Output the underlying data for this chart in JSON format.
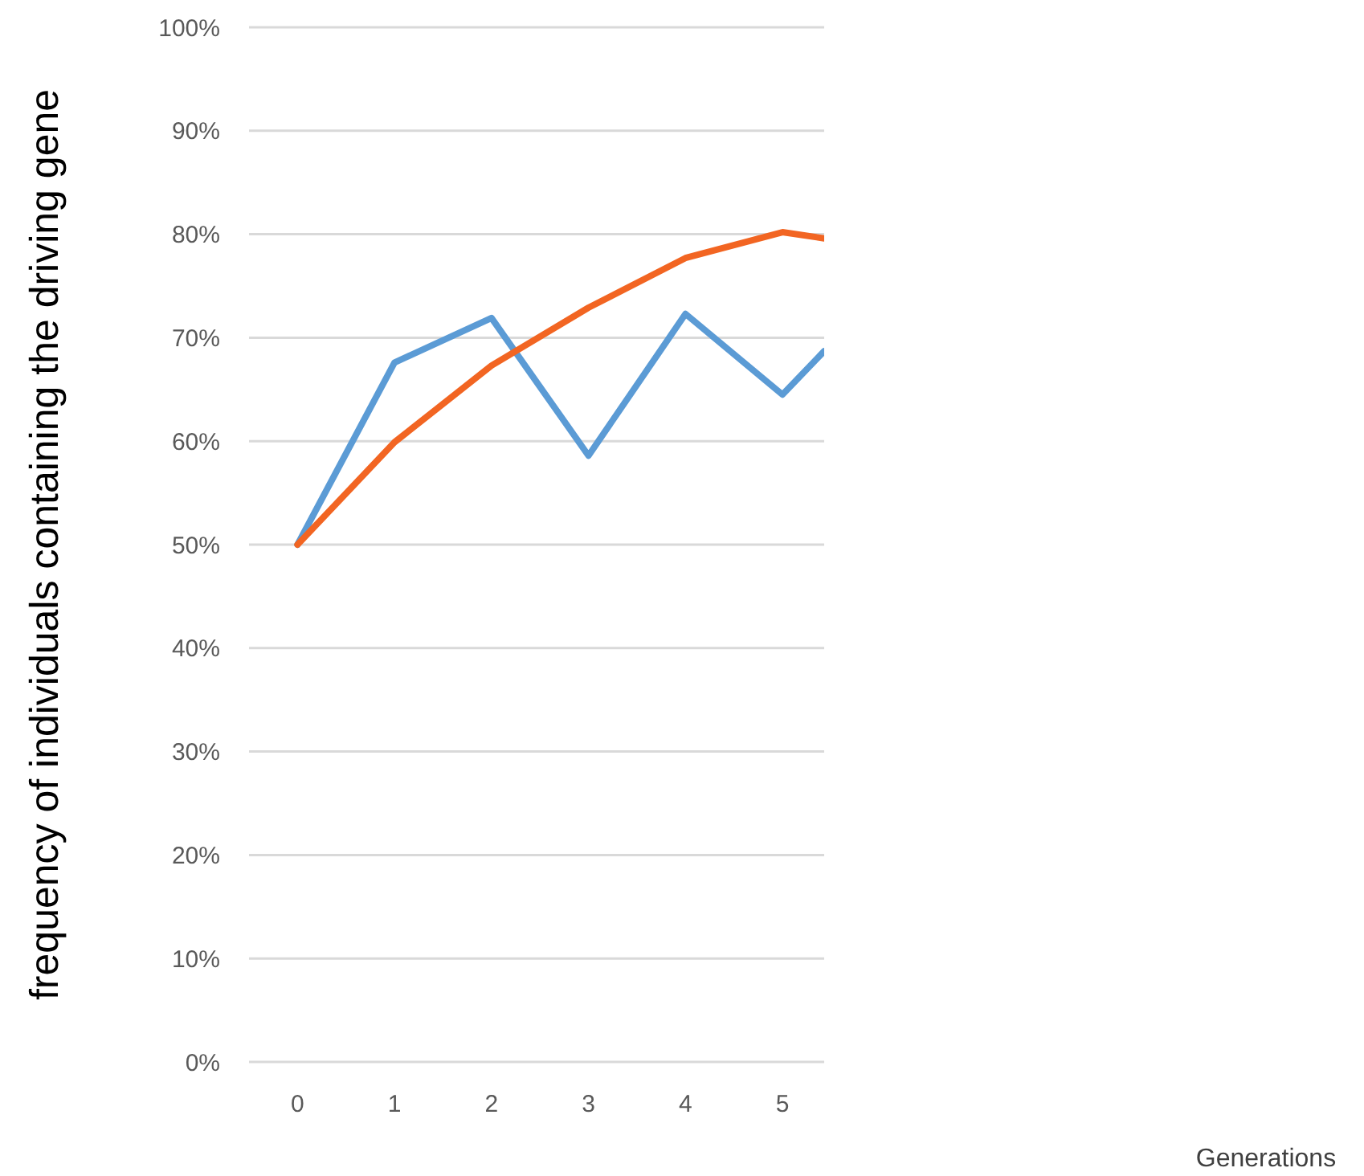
{
  "chart_data": {
    "type": "line",
    "annotations": [
      "Generations"
    ],
    "ylabel": "frequency of individuals containing the driving gene",
    "x": [
      0,
      1,
      2,
      3,
      4,
      5,
      5.43
    ],
    "series": [
      {
        "color": "#5b9bd5",
        "values": [
          50,
          67.6,
          71.9,
          58.6,
          72.3,
          64.5,
          68.7
        ]
      },
      {
        "color": "#f26522",
        "values": [
          50,
          59.9,
          67.3,
          72.9,
          77.7,
          80.2,
          79.6
        ]
      }
    ],
    "xlim": [
      -0.5,
      5.43
    ],
    "xticks": [
      0,
      1,
      2,
      3,
      4,
      5
    ],
    "ylim": [
      0,
      100
    ],
    "yticks": [
      {
        "value": 0,
        "label": "0%"
      },
      {
        "value": 10,
        "label": "10%"
      },
      {
        "value": 20,
        "label": "20%"
      },
      {
        "value": 30,
        "label": "30%"
      },
      {
        "value": 40,
        "label": "40%"
      },
      {
        "value": 50,
        "label": "50%"
      },
      {
        "value": 60,
        "label": "60%"
      },
      {
        "value": 70,
        "label": "70%"
      },
      {
        "value": 80,
        "label": "80%"
      },
      {
        "value": 90,
        "label": "90%"
      },
      {
        "value": 100,
        "label": "100%"
      }
    ],
    "grid": "y",
    "marker": "none",
    "line_style": "solid"
  }
}
